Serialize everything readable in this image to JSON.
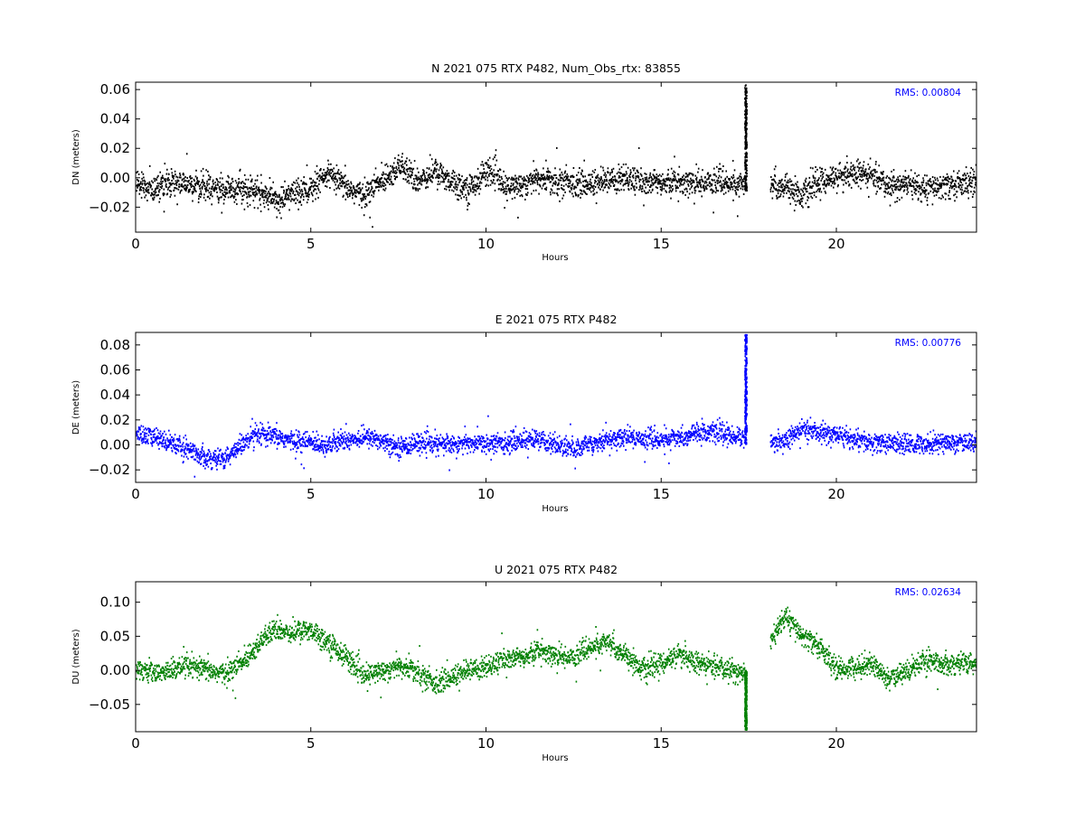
{
  "chart_data": [
    {
      "type": "scatter",
      "title": "N 2021 075 RTX  P482, Num_Obs_rtx: 83855",
      "xlabel": "Hours",
      "ylabel": "DN (meters)",
      "xlim": [
        0,
        24
      ],
      "ylim": [
        -0.037,
        0.065
      ],
      "xticks": [
        0,
        5,
        10,
        15,
        20
      ],
      "yticks": [
        -0.02,
        0.0,
        0.02,
        0.04,
        0.06
      ],
      "ytick_labels": [
        "−0.02",
        "0.00",
        "0.02",
        "0.04",
        "0.06"
      ],
      "annotation": "RMS:  0.00804",
      "annotation_color": "#0000ff",
      "series": [
        {
          "color": "#000000",
          "gap": [
            17.4,
            18.1
          ],
          "noise": 0.008,
          "baseline": [
            [
              0,
              -0.004
            ],
            [
              0.5,
              -0.008
            ],
            [
              1,
              -0.002
            ],
            [
              1.5,
              -0.005
            ],
            [
              2,
              -0.006
            ],
            [
              2.5,
              -0.009
            ],
            [
              3,
              -0.006
            ],
            [
              3.5,
              -0.01
            ],
            [
              4,
              -0.016
            ],
            [
              4.5,
              -0.01
            ],
            [
              5,
              -0.008
            ],
            [
              5.5,
              0.002
            ],
            [
              6,
              -0.007
            ],
            [
              6.5,
              -0.012
            ],
            [
              7,
              -0.002
            ],
            [
              7.5,
              0.008
            ],
            [
              8,
              -0.002
            ],
            [
              8.5,
              0.004
            ],
            [
              9,
              -0.002
            ],
            [
              9.5,
              -0.008
            ],
            [
              10,
              0.005
            ],
            [
              10.3,
              0.001
            ],
            [
              10.5,
              -0.008
            ],
            [
              11,
              -0.004
            ],
            [
              11.5,
              -0.001
            ],
            [
              12,
              -0.002
            ],
            [
              12.5,
              -0.004
            ],
            [
              13,
              -0.004
            ],
            [
              13.5,
              -0.002
            ],
            [
              14,
              0.0
            ],
            [
              14.5,
              -0.004
            ],
            [
              15,
              -0.002
            ],
            [
              15.5,
              -0.003
            ],
            [
              16,
              -0.004
            ],
            [
              16.5,
              -0.002
            ],
            [
              17,
              -0.004
            ],
            [
              17.38,
              -0.006
            ],
            [
              18.1,
              -0.005
            ],
            [
              18.5,
              -0.006
            ],
            [
              19,
              -0.012
            ],
            [
              19.5,
              -0.003
            ],
            [
              20,
              0.001
            ],
            [
              20.5,
              0.003
            ],
            [
              21,
              0.001
            ],
            [
              21.5,
              -0.006
            ],
            [
              22,
              -0.004
            ],
            [
              22.5,
              -0.008
            ],
            [
              23,
              -0.006
            ],
            [
              23.5,
              -0.004
            ],
            [
              24,
              -0.003
            ]
          ],
          "spikes": [
            {
              "x": 17.4,
              "y_from": -0.01,
              "y_to": 0.063
            }
          ]
        }
      ]
    },
    {
      "type": "scatter",
      "title": "E 2021 075 RTX  P482",
      "xlabel": "Hours",
      "ylabel": "DE (meters)",
      "xlim": [
        0,
        24
      ],
      "ylim": [
        -0.03,
        0.09
      ],
      "xticks": [
        0,
        5,
        10,
        15,
        20
      ],
      "yticks": [
        -0.02,
        0.0,
        0.02,
        0.04,
        0.06,
        0.08
      ],
      "ytick_labels": [
        "−0.02",
        "0.00",
        "0.02",
        "0.04",
        "0.06",
        "0.08"
      ],
      "annotation": "RMS:  0.00776",
      "annotation_color": "#0000ff",
      "series": [
        {
          "color": "#0000ff",
          "gap": [
            17.4,
            18.1
          ],
          "noise": 0.007,
          "baseline": [
            [
              0,
              0.008
            ],
            [
              0.5,
              0.006
            ],
            [
              1,
              0.002
            ],
            [
              1.5,
              -0.004
            ],
            [
              2,
              -0.01
            ],
            [
              2.5,
              -0.012
            ],
            [
              3,
              0.0
            ],
            [
              3.5,
              0.008
            ],
            [
              4,
              0.006
            ],
            [
              4.5,
              0.003
            ],
            [
              5,
              0.002
            ],
            [
              5.5,
              0.0
            ],
            [
              6,
              0.004
            ],
            [
              6.5,
              0.006
            ],
            [
              7,
              0.004
            ],
            [
              7.5,
              -0.002
            ],
            [
              8,
              0.002
            ],
            [
              8.5,
              0.0
            ],
            [
              9,
              0.001
            ],
            [
              9.5,
              0.001
            ],
            [
              10,
              0.002
            ],
            [
              10.5,
              0.001
            ],
            [
              11,
              0.004
            ],
            [
              11.5,
              0.004
            ],
            [
              12,
              0.0
            ],
            [
              12.5,
              -0.004
            ],
            [
              13,
              0.002
            ],
            [
              13.5,
              0.004
            ],
            [
              14,
              0.006
            ],
            [
              14.5,
              0.005
            ],
            [
              15,
              0.004
            ],
            [
              15.5,
              0.005
            ],
            [
              16,
              0.01
            ],
            [
              16.5,
              0.01
            ],
            [
              17,
              0.007
            ],
            [
              17.38,
              0.006
            ],
            [
              18.1,
              0.002
            ],
            [
              18.5,
              0.003
            ],
            [
              19,
              0.012
            ],
            [
              19.5,
              0.01
            ],
            [
              20,
              0.008
            ],
            [
              20.5,
              0.004
            ],
            [
              21,
              0.001
            ],
            [
              21.5,
              0.002
            ],
            [
              22,
              0.0
            ],
            [
              22.5,
              0.001
            ],
            [
              23,
              0.002
            ],
            [
              23.5,
              0.001
            ],
            [
              24,
              0.002
            ]
          ],
          "spikes": [
            {
              "x": 17.4,
              "y_from": 0.0,
              "y_to": 0.088
            }
          ]
        }
      ]
    },
    {
      "type": "scatter",
      "title": "U 2021 075 RTX  P482",
      "xlabel": "Hours",
      "ylabel": "DU (meters)",
      "xlim": [
        0,
        24
      ],
      "ylim": [
        -0.09,
        0.13
      ],
      "xticks": [
        0,
        5,
        10,
        15,
        20
      ],
      "yticks": [
        -0.05,
        0.0,
        0.05,
        0.1
      ],
      "ytick_labels": [
        "−0.05",
        "0.00",
        "0.05",
        "0.10"
      ],
      "annotation": "RMS:  0.02634",
      "annotation_color": "#0000ff",
      "series": [
        {
          "color": "#008000",
          "gap": [
            17.4,
            18.1
          ],
          "noise": 0.014,
          "baseline": [
            [
              0,
              0.005
            ],
            [
              0.5,
              -0.005
            ],
            [
              1,
              0.0
            ],
            [
              1.5,
              0.005
            ],
            [
              2,
              0.0
            ],
            [
              2.5,
              -0.005
            ],
            [
              3,
              0.01
            ],
            [
              3.5,
              0.04
            ],
            [
              4,
              0.06
            ],
            [
              4.5,
              0.055
            ],
            [
              5,
              0.06
            ],
            [
              5.5,
              0.04
            ],
            [
              6,
              0.02
            ],
            [
              6.5,
              -0.01
            ],
            [
              7,
              0.0
            ],
            [
              7.5,
              0.005
            ],
            [
              8,
              0.0
            ],
            [
              8.5,
              -0.02
            ],
            [
              9,
              -0.01
            ],
            [
              9.5,
              0.0
            ],
            [
              10,
              0.005
            ],
            [
              10.5,
              0.015
            ],
            [
              11,
              0.02
            ],
            [
              11.5,
              0.03
            ],
            [
              12,
              0.02
            ],
            [
              12.5,
              0.02
            ],
            [
              13,
              0.035
            ],
            [
              13.5,
              0.04
            ],
            [
              14,
              0.02
            ],
            [
              14.5,
              0.0
            ],
            [
              15,
              0.01
            ],
            [
              15.5,
              0.025
            ],
            [
              16,
              0.01
            ],
            [
              16.5,
              0.005
            ],
            [
              17,
              0.0
            ],
            [
              17.38,
              -0.005
            ],
            [
              18.1,
              0.04
            ],
            [
              18.5,
              0.08
            ],
            [
              19,
              0.05
            ],
            [
              19.5,
              0.035
            ],
            [
              20,
              0.0
            ],
            [
              20.5,
              0.005
            ],
            [
              21,
              0.01
            ],
            [
              21.5,
              -0.015
            ],
            [
              22,
              0.0
            ],
            [
              22.5,
              0.015
            ],
            [
              23,
              0.01
            ],
            [
              23.5,
              0.01
            ],
            [
              24,
              0.01
            ]
          ],
          "spikes": [
            {
              "x": 17.4,
              "y_from": -0.088,
              "y_to": 0.0
            }
          ]
        }
      ]
    }
  ]
}
